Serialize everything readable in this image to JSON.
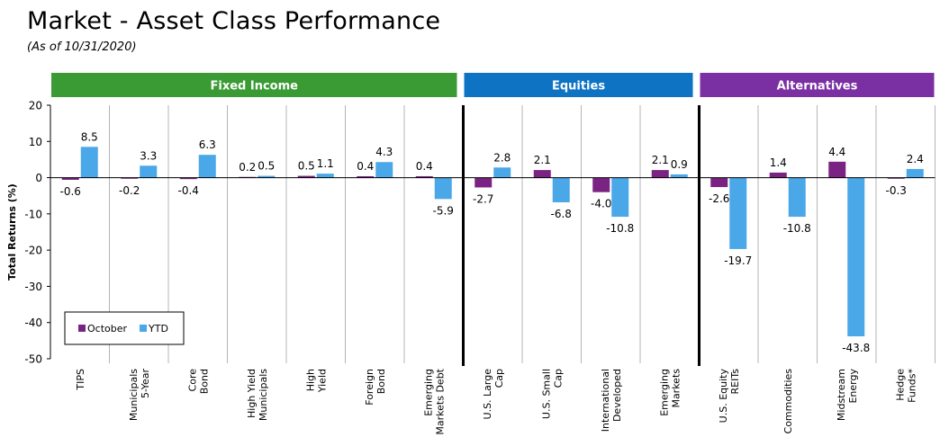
{
  "header": {
    "title": "Market - Asset Class Performance",
    "subtitle": "(As of 10/31/2020)"
  },
  "chart_data": {
    "type": "bar",
    "ylabel": "Total Returns (%)",
    "ylim": [
      -50,
      20
    ],
    "yticks": [
      20,
      10,
      0,
      -10,
      -20,
      -30,
      -40,
      -50
    ],
    "legend_position": "bottom-left",
    "series": [
      {
        "name": "October",
        "color": "#7B2382",
        "values": [
          -0.6,
          -0.2,
          -0.4,
          0.2,
          0.5,
          0.4,
          0.4,
          -2.7,
          2.1,
          -4.0,
          2.1,
          -2.6,
          1.4,
          4.4,
          -0.3
        ]
      },
      {
        "name": "YTD",
        "color": "#4AA7E8",
        "values": [
          8.5,
          3.3,
          6.3,
          0.5,
          1.1,
          4.3,
          -5.9,
          2.8,
          -6.8,
          -10.8,
          0.9,
          -19.7,
          -10.8,
          -43.8,
          2.4
        ]
      }
    ],
    "categories": [
      [
        "TIPS"
      ],
      [
        "Municipals",
        "5-Year"
      ],
      [
        "Core",
        "Bond"
      ],
      [
        "High Yield",
        "Municipals"
      ],
      [
        "High",
        "Yield"
      ],
      [
        "Foreign",
        "Bond"
      ],
      [
        "Emerging",
        "Markets Debt"
      ],
      [
        "U.S. Large",
        "Cap"
      ],
      [
        "U.S. Small",
        "Cap"
      ],
      [
        "International",
        "Developed"
      ],
      [
        "Emerging",
        "Markets"
      ],
      [
        "U.S. Equity",
        "REITs"
      ],
      [
        "Commodities"
      ],
      [
        "Midstream",
        "Energy"
      ],
      [
        "Hedge",
        "Funds*"
      ]
    ],
    "groups": [
      {
        "label": "Fixed Income",
        "start": 0,
        "end": 6,
        "color": "#3A9B35"
      },
      {
        "label": "Equities",
        "start": 7,
        "end": 10,
        "color": "#0F73C4"
      },
      {
        "label": "Alternatives",
        "start": 11,
        "end": 14,
        "color": "#7A2FA3"
      }
    ]
  }
}
